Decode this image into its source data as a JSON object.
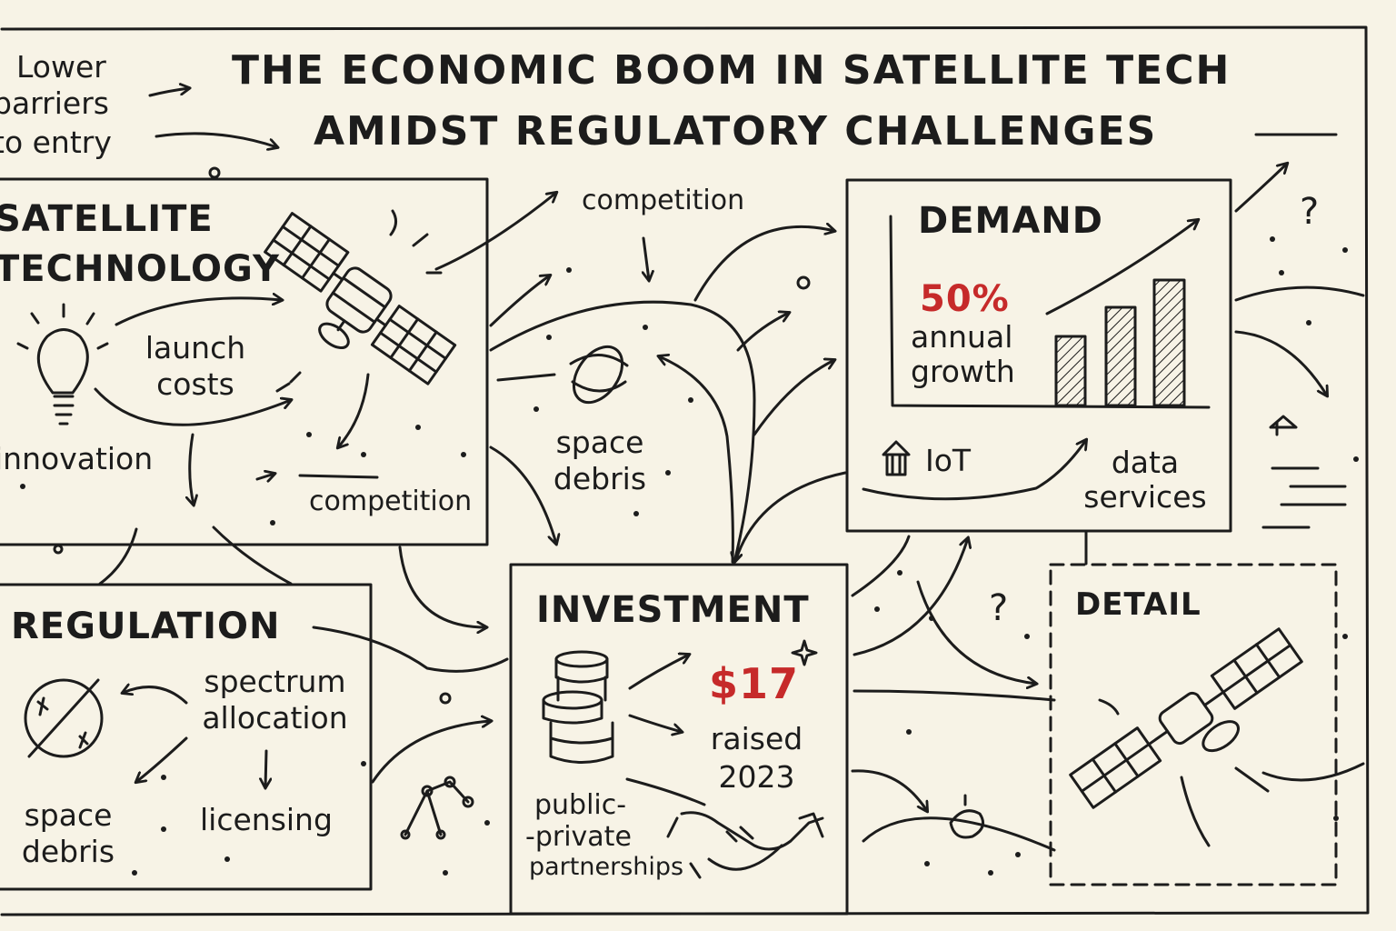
{
  "title": {
    "line1": "THE ECONOMIC BOOM IN SATELLITE TECH",
    "line2": "AMIDST REGULATORY CHALLENGES"
  },
  "intro": {
    "line1": "Lower",
    "line2": "barriers",
    "line3": "to entry"
  },
  "satellite_box": {
    "heading_line1": "SATELLITE",
    "heading_line2": "TECHNOLOGY",
    "launch_costs_line1": "launch",
    "launch_costs_line2": "costs",
    "innovation": "innovation",
    "competition": "competition"
  },
  "middle": {
    "competition": "competition",
    "space_debris_line1": "space",
    "space_debris_line2": "debris"
  },
  "demand_box": {
    "heading": "DEMAND",
    "growth_value": "50%",
    "growth_line1": "annual",
    "growth_line2": "growth",
    "iot": "IoT",
    "data_services_line1": "data",
    "data_services_line2": "services"
  },
  "regulation_box": {
    "heading": "REGULATION",
    "spectrum_line1": "spectrum",
    "spectrum_line2": "allocation",
    "space_debris_line1": "space",
    "space_debris_line2": "debris",
    "licensing": "licensing"
  },
  "investment_box": {
    "heading": "INVESTMENT",
    "amount": "$17",
    "raised_line1": "raised",
    "raised_line2": "2023",
    "ppp_line1": "public-",
    "ppp_line2": "-private",
    "ppp_line3": "partnerships"
  },
  "detail_box": {
    "heading": "DETAIL"
  },
  "misc": {
    "question1": "?",
    "question2": "?"
  },
  "colors": {
    "ink": "#1c1c1c",
    "accent": "#c62a2a",
    "paper": "#f7f3e6"
  },
  "icons": [
    "lightbulb-icon",
    "satellite-icon",
    "space-debris-icon",
    "coin-stack-icon",
    "handshake-icon",
    "no-symbol-icon",
    "network-icon",
    "house-icon",
    "bar-chart-icon"
  ]
}
